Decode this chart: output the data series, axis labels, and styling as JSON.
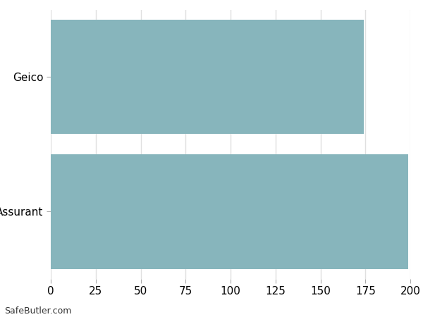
{
  "categories": [
    "Assurant",
    "Geico"
  ],
  "values": [
    199,
    174
  ],
  "bar_color": "#87B5BC",
  "background_color": "#ffffff",
  "grid_color": "#e0e0e0",
  "xlim": [
    0,
    200
  ],
  "xticks": [
    0,
    25,
    50,
    75,
    100,
    125,
    150,
    175,
    200
  ],
  "bar_height": 0.85,
  "tick_label_fontsize": 11,
  "watermark": "SafeButler.com",
  "watermark_fontsize": 9
}
